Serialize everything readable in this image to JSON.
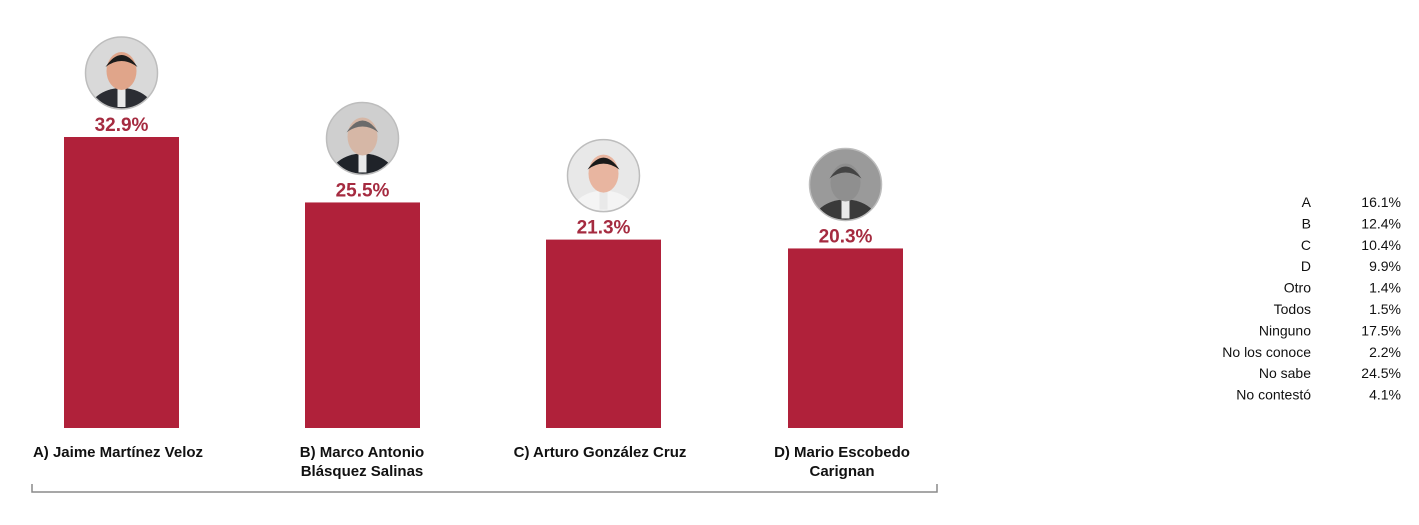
{
  "chart_data": {
    "type": "bar",
    "categories": [
      [
        "A) Jaime Martínez Veloz"
      ],
      [
        "B) Marco Antonio",
        "Blásquez Salinas"
      ],
      [
        "C) Arturo González Cruz"
      ],
      [
        "D) Mario Escobedo",
        "Carignan"
      ]
    ],
    "values": [
      32.9,
      25.5,
      21.3,
      20.3
    ],
    "value_labels": [
      "32.9%",
      "25.5%",
      "21.3%",
      "20.3%"
    ],
    "ylim": [
      0,
      35
    ],
    "grid": false,
    "bar_color": "#b0213a",
    "label_color": "#a52b40",
    "icons": [
      "candidate-a-photo-icon",
      "candidate-b-photo-icon",
      "candidate-c-photo-icon",
      "candidate-d-photo-icon"
    ]
  },
  "side_table": {
    "rows": [
      {
        "label": "A",
        "value": "16.1%"
      },
      {
        "label": "B",
        "value": "12.4%"
      },
      {
        "label": "C",
        "value": "10.4%"
      },
      {
        "label": "D",
        "value": "9.9%"
      },
      {
        "label": "Otro",
        "value": "1.4%"
      },
      {
        "label": "Todos",
        "value": "1.5%"
      },
      {
        "label": "Ninguno",
        "value": "17.5%"
      },
      {
        "label": "No los conoce",
        "value": "2.2%"
      },
      {
        "label": "No sabe",
        "value": "24.5%"
      },
      {
        "label": "No contestó",
        "value": "4.1%"
      }
    ]
  }
}
